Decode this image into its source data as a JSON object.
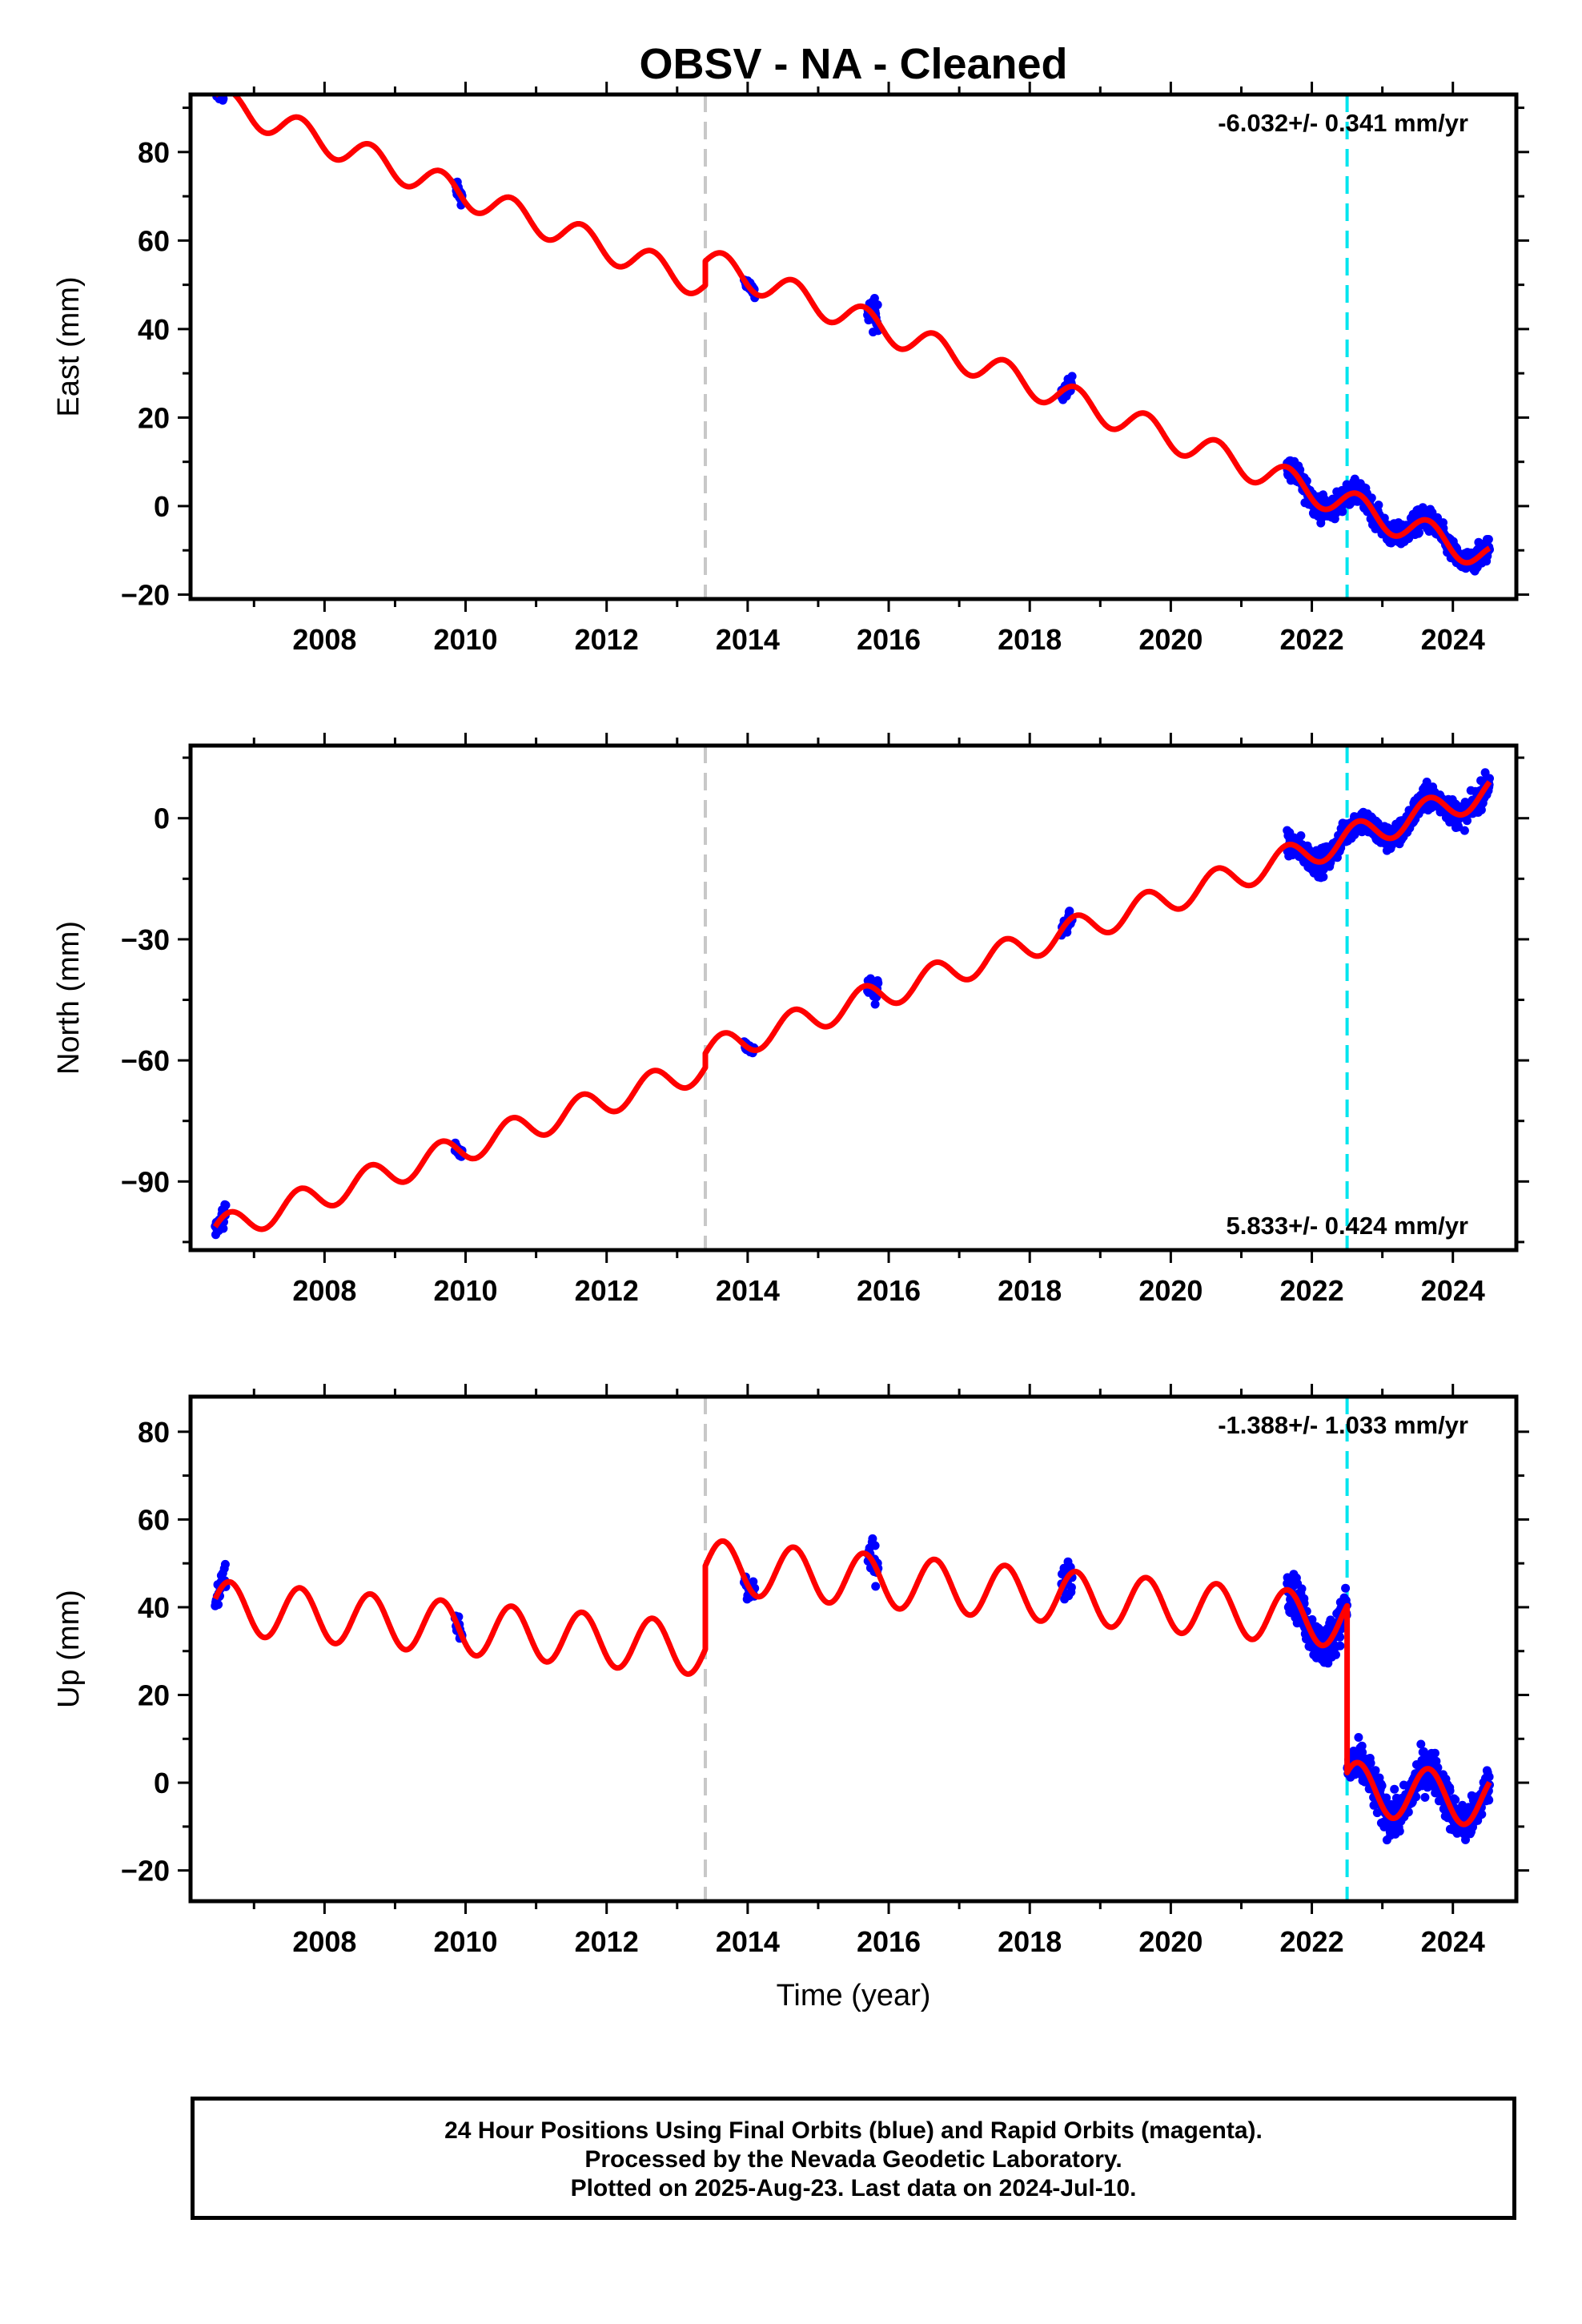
{
  "title": "OBSV  - NA - Cleaned",
  "footer": {
    "line1": "24 Hour Positions Using Final Orbits (blue) and Rapid Orbits (magenta).",
    "line2": "Processed by the Nevada Geodetic Laboratory.",
    "line3": "Plotted on 2025-Aug-23. Last data on 2024-Jul-10."
  },
  "colors": {
    "data_points": "#0000ff",
    "model": "#ff0000",
    "equipment_change": "#c8c8c8",
    "earthquake_offset": "#00e5ee"
  },
  "chart_data": [
    {
      "type": "scatter",
      "ylabel": "East (mm)",
      "xlabel": "",
      "xlim": [
        2006.1,
        2024.9
      ],
      "ylim": [
        -21,
        93
      ],
      "xticks": [
        2008,
        2010,
        2012,
        2014,
        2016,
        2018,
        2020,
        2022,
        2024
      ],
      "yticks": [
        -20,
        0,
        20,
        40,
        60,
        80
      ],
      "rate_label": "-6.032+/- 0.341 mm/yr",
      "rate_position": "top-right",
      "equipment_change_year": 2013.4,
      "earthquake_year": 2022.5,
      "model": {
        "rate": -6.032,
        "anchor_year": 2006.5,
        "anchor_value": 91.5,
        "annual_amplitude": 3.2,
        "offsets": [
          {
            "year": 2013.4,
            "value": 5.5
          }
        ],
        "postseismic": {
          "year": 2022.5,
          "amplitude": 0,
          "tau": 0.5
        },
        "start": 2006.45,
        "end": 2024.52
      },
      "observation_segments": [
        {
          "start": 2006.45,
          "end": 2006.6,
          "spread": 2.5
        },
        {
          "start": 2009.85,
          "end": 2009.95,
          "spread": 1.5
        },
        {
          "start": 2013.95,
          "end": 2014.1,
          "spread": 1.5
        },
        {
          "start": 2015.7,
          "end": 2015.85,
          "spread": 3.5
        },
        {
          "start": 2018.45,
          "end": 2018.6,
          "spread": 2.0
        },
        {
          "start": 2021.65,
          "end": 2024.52,
          "spread": 2.5
        }
      ]
    },
    {
      "type": "scatter",
      "ylabel": "North (mm)",
      "xlabel": "",
      "xlim": [
        2006.1,
        2024.9
      ],
      "ylim": [
        -107,
        18
      ],
      "xticks": [
        2008,
        2010,
        2012,
        2014,
        2016,
        2018,
        2020,
        2022,
        2024
      ],
      "yticks": [
        -90,
        -60,
        -30,
        0
      ],
      "rate_label": "5.833+/- 0.424 mm/yr",
      "rate_position": "bottom-right",
      "equipment_change_year": 2013.4,
      "earthquake_year": 2022.5,
      "model": {
        "rate": 5.833,
        "anchor_year": 2006.5,
        "anchor_value": -102,
        "annual_amplitude": 3.5,
        "offsets": [
          {
            "year": 2013.4,
            "value": 3.5
          }
        ],
        "postseismic": {
          "year": 2022.5,
          "amplitude": 0,
          "tau": 0.5
        },
        "start": 2006.45,
        "end": 2024.52
      },
      "observation_segments": [
        {
          "start": 2006.45,
          "end": 2006.6,
          "spread": 2.5
        },
        {
          "start": 2009.85,
          "end": 2009.95,
          "spread": 1.5
        },
        {
          "start": 2013.95,
          "end": 2014.1,
          "spread": 1.0
        },
        {
          "start": 2015.7,
          "end": 2015.85,
          "spread": 3.5
        },
        {
          "start": 2018.45,
          "end": 2018.6,
          "spread": 2.0
        },
        {
          "start": 2021.65,
          "end": 2024.52,
          "spread": 3.0
        }
      ]
    },
    {
      "type": "scatter",
      "ylabel": "Up (mm)",
      "xlabel": "Time (year)",
      "xlim": [
        2006.1,
        2024.9
      ],
      "ylim": [
        -27,
        88
      ],
      "xticks": [
        2008,
        2010,
        2012,
        2014,
        2016,
        2018,
        2020,
        2022,
        2024
      ],
      "yticks": [
        -20,
        0,
        20,
        40,
        60,
        80
      ],
      "rate_label": "-1.388+/- 1.033 mm/yr",
      "rate_position": "top-right",
      "equipment_change_year": 2013.4,
      "earthquake_year": 2022.5,
      "model": {
        "rate": -1.388,
        "anchor_year": 2006.5,
        "anchor_value": 40,
        "annual_amplitude": 6.0,
        "offsets": [
          {
            "year": 2013.4,
            "value": 19
          },
          {
            "year": 2022.5,
            "value": -38
          }
        ],
        "postseismic": {
          "year": 2022.5,
          "amplitude": 0,
          "tau": 0.5
        },
        "start": 2006.45,
        "end": 2024.52
      },
      "observation_segments": [
        {
          "start": 2006.45,
          "end": 2006.6,
          "spread": 4.0
        },
        {
          "start": 2009.85,
          "end": 2009.95,
          "spread": 3.0
        },
        {
          "start": 2013.95,
          "end": 2014.1,
          "spread": 3.0
        },
        {
          "start": 2015.7,
          "end": 2015.85,
          "spread": 5.0
        },
        {
          "start": 2018.45,
          "end": 2018.6,
          "spread": 4.0
        },
        {
          "start": 2021.65,
          "end": 2024.52,
          "spread": 4.5
        }
      ]
    }
  ]
}
